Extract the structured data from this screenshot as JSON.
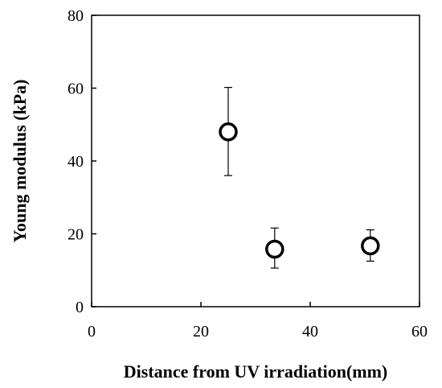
{
  "chart_data": {
    "type": "scatter",
    "xlabel": "Distance from UV irradiation(mm)",
    "ylabel": "Young modulus (kPa)",
    "xlim": [
      0,
      60
    ],
    "ylim": [
      0,
      80
    ],
    "xticks": [
      0,
      20,
      40,
      60
    ],
    "yticks": [
      0,
      20,
      40,
      60,
      80
    ],
    "grid": false,
    "marker": "open-circle",
    "colors": {
      "marker_stroke": "#000000",
      "marker_fill": "#ffffff",
      "axis": "#000000"
    },
    "points": [
      {
        "x": 25,
        "y": 48,
        "err_low": 36,
        "err_high": 60.2
      },
      {
        "x": 33.5,
        "y": 15.8,
        "err_low": 10.6,
        "err_high": 21.6
      },
      {
        "x": 51,
        "y": 16.7,
        "err_low": 12.5,
        "err_high": 21.1
      }
    ]
  }
}
